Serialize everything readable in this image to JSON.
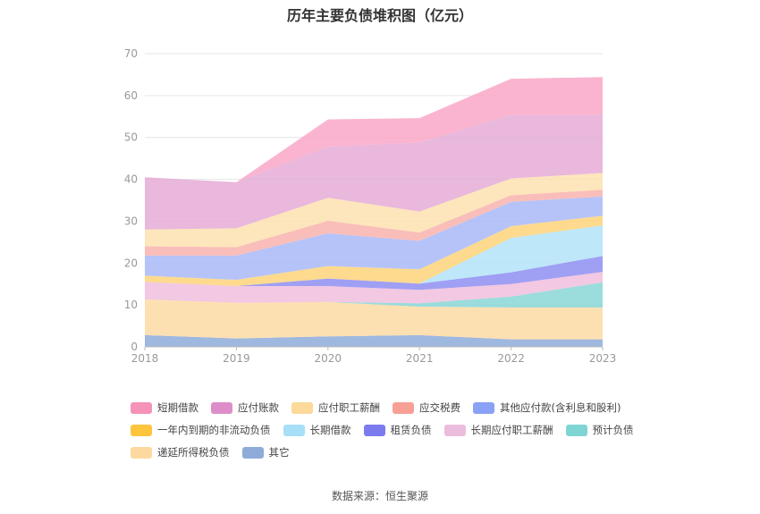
{
  "chart_data": {
    "type": "area",
    "stacked": true,
    "title": "历年主要负债堆积图（亿元）",
    "categories": [
      "2018",
      "2019",
      "2020",
      "2021",
      "2022",
      "2023"
    ],
    "ylim": [
      0,
      70
    ],
    "yticks": [
      0,
      10,
      20,
      30,
      40,
      50,
      60,
      70
    ],
    "grid": true,
    "legend_position": "bottom",
    "series": [
      {
        "name": "其它",
        "color": "#8eacd9",
        "values": [
          2.8,
          2.0,
          2.5,
          2.8,
          1.8,
          1.8
        ]
      },
      {
        "name": "递延所得税负债",
        "color": "#fddba3",
        "values": [
          8.5,
          8.5,
          8.2,
          6.8,
          7.6,
          7.6
        ]
      },
      {
        "name": "预计负债",
        "color": "#8ad6d6",
        "values": [
          0,
          0,
          0,
          0.8,
          2.6,
          6.0
        ]
      },
      {
        "name": "长期应付职工薪酬",
        "color": "#f0bedd",
        "values": [
          4.2,
          4.0,
          3.8,
          3.2,
          3.0,
          2.5
        ]
      },
      {
        "name": "租赁负债",
        "color": "#8e8ef2",
        "values": [
          0,
          0,
          1.8,
          1.5,
          2.8,
          3.8
        ]
      },
      {
        "name": "长期借款",
        "color": "#b3e3f8",
        "values": [
          0,
          0,
          0,
          0,
          8.2,
          7.3
        ]
      },
      {
        "name": "一年内到期的非流动负债",
        "color": "#fdd37a",
        "values": [
          1.5,
          1.5,
          3.0,
          3.4,
          2.8,
          2.3
        ]
      },
      {
        "name": "其他应付款(含利息和股利)",
        "color": "#a8b8f8",
        "values": [
          4.8,
          5.8,
          7.8,
          6.8,
          5.8,
          4.6
        ]
      },
      {
        "name": "应交税费",
        "color": "#f8b3ad",
        "values": [
          2.2,
          2.0,
          3.0,
          2.0,
          1.6,
          1.6
        ]
      },
      {
        "name": "应付职工薪酬",
        "color": "#fde1b0",
        "values": [
          4.0,
          4.5,
          5.5,
          5.0,
          4.0,
          4.0
        ]
      },
      {
        "name": "应付账款",
        "color": "#e5acd6",
        "values": [
          12.5,
          11.0,
          12.2,
          16.5,
          15.2,
          13.9
        ]
      },
      {
        "name": "短期借款",
        "color": "#f9a7c7",
        "values": [
          0,
          0,
          6.5,
          5.8,
          8.6,
          9.0
        ]
      }
    ],
    "legend": [
      {
        "name": "短期借款",
        "color": "#f592b8"
      },
      {
        "name": "应付账款",
        "color": "#dd8ec8"
      },
      {
        "name": "应付职工薪酬",
        "color": "#fdd99a"
      },
      {
        "name": "应交税费",
        "color": "#f7a096"
      },
      {
        "name": "其他应付款(含利息和股利)",
        "color": "#8aa2f5"
      },
      {
        "name": "一年内到期的非流动负债",
        "color": "#fdc43c"
      },
      {
        "name": "长期借款",
        "color": "#a7dff8"
      },
      {
        "name": "租赁负债",
        "color": "#7b7bee"
      },
      {
        "name": "长期应付职工薪酬",
        "color": "#ebbcdc"
      },
      {
        "name": "预计负债",
        "color": "#7fd4d4"
      },
      {
        "name": "递延所得税负债",
        "color": "#fdd9a0"
      },
      {
        "name": "其它",
        "color": "#8eacd9"
      }
    ],
    "source": "数据来源：恒生聚源"
  }
}
